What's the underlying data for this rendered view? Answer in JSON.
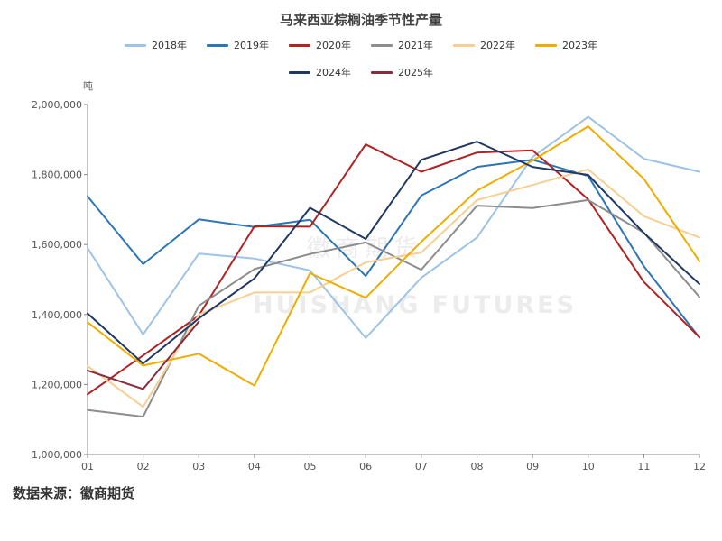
{
  "header": {
    "title": "马来西亚棕榈油季节性产量"
  },
  "axis": {
    "unit": "吨"
  },
  "watermark": {
    "cn": "徽商期货",
    "en": "HUISHANG FUTURES"
  },
  "footer": {
    "source": "数据来源：徽商期货"
  },
  "chart_data": {
    "type": "line",
    "title": "马来西亚棕榈油季节性产量",
    "xlabel": "",
    "ylabel": "吨",
    "categories": [
      "01",
      "02",
      "03",
      "04",
      "05",
      "06",
      "07",
      "08",
      "09",
      "10",
      "11",
      "12"
    ],
    "ylim": [
      1000000,
      2000000
    ],
    "yticks": [
      1000000,
      1200000,
      1400000,
      1600000,
      1800000,
      2000000
    ],
    "ytick_labels": [
      "1,000,000",
      "1,200,000",
      "1,400,000",
      "1,600,000",
      "1,800,000",
      "2,000,000"
    ],
    "grid": false,
    "legend_position": "top-center",
    "series": [
      {
        "name": "2018年",
        "color": "#9dc3e6",
        "values": [
          1590000,
          1343000,
          1574000,
          1560000,
          1526000,
          1333000,
          1505000,
          1620000,
          1850000,
          1965000,
          1845000,
          1808000
        ]
      },
      {
        "name": "2019年",
        "color": "#2e75b6",
        "values": [
          1738000,
          1544000,
          1672000,
          1650000,
          1671000,
          1510000,
          1740000,
          1822000,
          1842000,
          1796000,
          1538000,
          1334000
        ]
      },
      {
        "name": "2020年",
        "color": "#b22222",
        "values": [
          1172000,
          1283000,
          1397000,
          1652000,
          1651000,
          1886000,
          1808000,
          1863000,
          1869000,
          1729000,
          1493000,
          1335000
        ]
      },
      {
        "name": "2021年",
        "color": "#8c8c8c",
        "values": [
          1127000,
          1108000,
          1425000,
          1530000,
          1573000,
          1606000,
          1528000,
          1711000,
          1704000,
          1727000,
          1634000,
          1450000
        ]
      },
      {
        "name": "2022年",
        "color": "#f7cf93",
        "values": [
          1253000,
          1136000,
          1400000,
          1463000,
          1463000,
          1549000,
          1577000,
          1727000,
          1770000,
          1815000,
          1681000,
          1620000
        ]
      },
      {
        "name": "2023年",
        "color": "#f0ad00",
        "values": [
          1378000,
          1254000,
          1288000,
          1197000,
          1518000,
          1448000,
          1608000,
          1754000,
          1840000,
          1938000,
          1788000,
          1552000
        ]
      },
      {
        "name": "2024年",
        "color": "#1f3864",
        "values": [
          1403000,
          1260000,
          1389000,
          1503000,
          1705000,
          1616000,
          1842000,
          1894000,
          1822000,
          1799000,
          1633000,
          1487000
        ]
      },
      {
        "name": "2025年",
        "color": "#8b2a3c",
        "values": [
          1240000,
          1187000,
          1380000,
          null,
          null,
          null,
          null,
          null,
          null,
          null,
          null,
          null
        ]
      }
    ]
  }
}
